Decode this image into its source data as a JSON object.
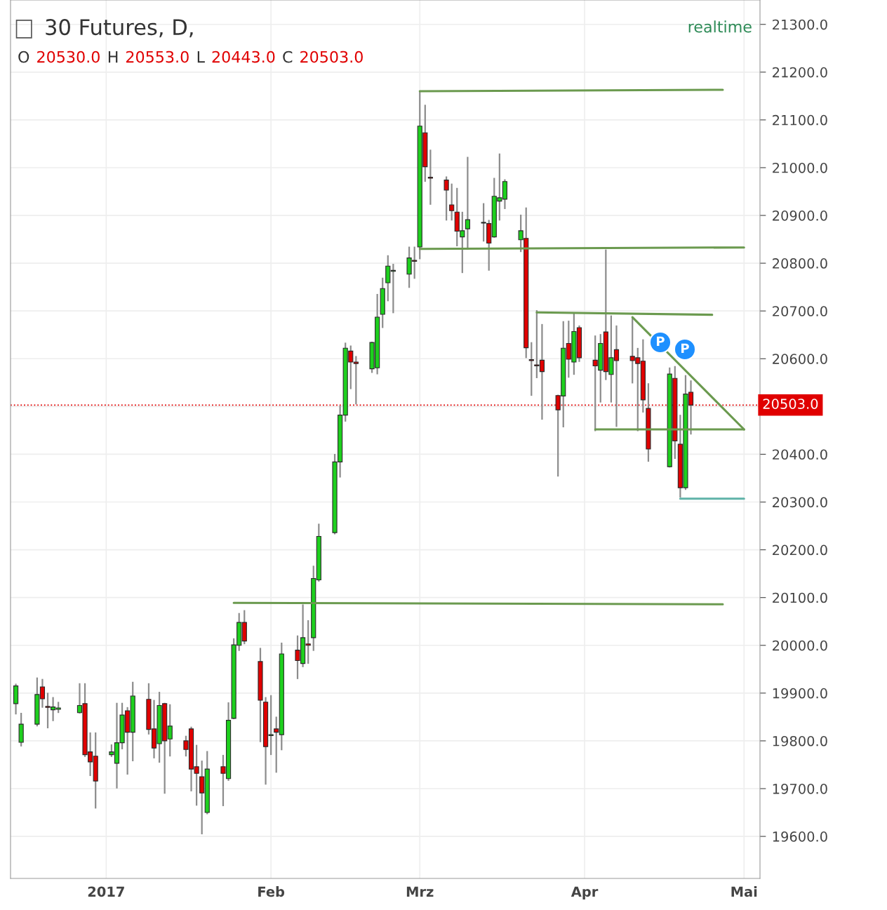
{
  "chart_data": {
    "type": "candlestick",
    "title": "30 Futures, D,",
    "annotations": [
      "O 20530.0 H 20553.0 L 20443.0 C 20503.0",
      "realtime",
      "P",
      "P"
    ],
    "colors": [
      "#1ed01e",
      "#1ed01e",
      "#1ed01e",
      "#e00000",
      "#e00000",
      "#1ed01e",
      "#1ed01e",
      "#1ed01e",
      "#e00000",
      "#e00000",
      "#e00000",
      "#1ed01e",
      "#1ed01e",
      "#1ed01e",
      "#e00000",
      "#1ed01e",
      "#e00000",
      "#e00000",
      "#1ed01e",
      "#e00000",
      "#1ed01e",
      "#e00000",
      "#e00000",
      "#e00000",
      "#e00000",
      "#1ed01e",
      "#e00000",
      "#1ed01e",
      "#1ed01e",
      "#1ed01e",
      "#e00000",
      "#e00000",
      "#e00000",
      "#1ed01e",
      "#e00000",
      "#1ed01e",
      "#e00000",
      "#1ed01e",
      "#e00000",
      "#1ed01e",
      "#1ed01e",
      "#1ed01e",
      "#1ed01e",
      "#1ed01e",
      "#e00000",
      "#e00000",
      "#1ed01e",
      "#1ed01e",
      "#1ed01e",
      "#1ed01e",
      "#1ed01e",
      "#1ed01e",
      "#e00000",
      "#1ed01e",
      "#e00000",
      "#e00000",
      "#e00000",
      "#e00000",
      "#e00000",
      "#1ed01e",
      "#1ed01e",
      "#1ed01e",
      "#e00000",
      "#1ed01e",
      "#1ed01e",
      "#1ed01e",
      "#1ed01e",
      "#e00000",
      "#e00000",
      "#e00000",
      "#e00000",
      "#e00000",
      "#1ed01e",
      "#e00000",
      "#1ed01e",
      "#e00000",
      "#e00000",
      "#1ed01e",
      "#e00000",
      "#1ed01e",
      "#e00000",
      "#e00000",
      "#e00000",
      "#e00000",
      "#e00000",
      "#1ed01e",
      "#e00000",
      "#e00000",
      "#1ed01e",
      "#e00000"
    ],
    "x": [
      "2016-12-15",
      "2016-12-16",
      "2016-12-19",
      "2016-12-20",
      "2016-12-21",
      "2016-12-22",
      "2016-12-23",
      "2016-12-27",
      "2016-12-28",
      "2016-12-29",
      "2016-12-30",
      "2017-01-02",
      "2017-01-03",
      "2017-01-04",
      "2017-01-05",
      "2017-01-06",
      "2017-01-09",
      "2017-01-10",
      "2017-01-11",
      "2017-01-12",
      "2017-01-13",
      "2017-01-16",
      "2017-01-17",
      "2017-01-18",
      "2017-01-19",
      "2017-01-20",
      "2017-01-23",
      "2017-01-24",
      "2017-01-25",
      "2017-01-26",
      "2017-01-27",
      "2017-01-30",
      "2017-01-31",
      "2017-02-01",
      "2017-02-02",
      "2017-02-03",
      "2017-02-06",
      "2017-02-07",
      "2017-02-08",
      "2017-02-09",
      "2017-02-10",
      "2017-02-13",
      "2017-02-14",
      "2017-02-15",
      "2017-02-16",
      "2017-02-17",
      "2017-02-20",
      "2017-02-21",
      "2017-02-22",
      "2017-02-23",
      "2017-02-24",
      "2017-02-27",
      "2017-02-28",
      "2017-03-01",
      "2017-03-02",
      "2017-03-03",
      "2017-03-06",
      "2017-03-07",
      "2017-03-08",
      "2017-03-09",
      "2017-03-10",
      "2017-03-13",
      "2017-03-14",
      "2017-03-15",
      "2017-03-16",
      "2017-03-17",
      "2017-03-20",
      "2017-03-21",
      "2017-03-22",
      "2017-03-23",
      "2017-03-24",
      "2017-03-27",
      "2017-03-28",
      "2017-03-29",
      "2017-03-30",
      "2017-03-31",
      "2017-04-03",
      "2017-04-04",
      "2017-04-05",
      "2017-04-06",
      "2017-04-07",
      "2017-04-10",
      "2017-04-11",
      "2017-04-12",
      "2017-04-13",
      "2017-04-17",
      "2017-04-18",
      "2017-04-19",
      "2017-04-20",
      "2017-04-21"
    ],
    "ohlc": [
      [
        19878,
        19918,
        19857,
        19915
      ],
      [
        19797,
        19857,
        19790,
        19835
      ],
      [
        19835,
        19931,
        19832,
        19897
      ],
      [
        19913,
        19928,
        19871,
        19888
      ],
      [
        19872,
        19899,
        19828,
        19870
      ],
      [
        19865,
        19890,
        19843,
        19871
      ],
      [
        19866,
        19880,
        19860,
        19869
      ],
      [
        19859,
        19919,
        19859,
        19874
      ],
      [
        19878,
        19919,
        19768,
        19771
      ],
      [
        19777,
        19816,
        19728,
        19756
      ],
      [
        19768,
        19816,
        19660,
        19716
      ],
      [
        19771,
        19791,
        19768,
        19777
      ],
      [
        19753,
        19878,
        19702,
        19796
      ],
      [
        19796,
        19878,
        19784,
        19854
      ],
      [
        19863,
        19869,
        19731,
        19818
      ],
      [
        19818,
        19922,
        19759,
        19894
      ],
      [
        19887,
        19919,
        19815,
        19824
      ],
      [
        19825,
        19884,
        19765,
        19785
      ],
      [
        19794,
        19901,
        19756,
        19874
      ],
      [
        19878,
        19878,
        19691,
        19800
      ],
      [
        19804,
        19875,
        19769,
        19831
      ],
      [
        19800,
        19809,
        19769,
        19782
      ],
      [
        19825,
        19828,
        19696,
        19741
      ],
      [
        19746,
        19790,
        19666,
        19732
      ],
      [
        19725,
        19757,
        19606,
        19691
      ],
      [
        19650,
        19777,
        19648,
        19741
      ],
      [
        19746,
        19769,
        19665,
        19732
      ],
      [
        19721,
        19879,
        19718,
        19843
      ],
      [
        19847,
        20013,
        19847,
        20001
      ],
      [
        20000,
        20066,
        19990,
        20048
      ],
      [
        20048,
        20072,
        20004,
        20009
      ],
      [
        19966,
        19993,
        19799,
        19885
      ],
      [
        19881,
        19890,
        19710,
        19788
      ],
      [
        19811,
        19894,
        19772,
        19813
      ],
      [
        19825,
        19849,
        19735,
        19818
      ],
      [
        19813,
        20004,
        19782,
        19982
      ],
      [
        19990,
        20019,
        19931,
        19968
      ],
      [
        19962,
        20084,
        19956,
        20016
      ],
      [
        20003,
        20051,
        19963,
        20000
      ],
      [
        20016,
        20165,
        19990,
        20140
      ],
      [
        20137,
        20253,
        20135,
        20228
      ],
      [
        20236,
        20399,
        20234,
        20384
      ],
      [
        20384,
        20500,
        20353,
        20482
      ],
      [
        20482,
        20632,
        20470,
        20622
      ],
      [
        20616,
        20626,
        20538,
        20593
      ],
      [
        20593,
        20604,
        20506,
        20590
      ],
      [
        20579,
        20634,
        20572,
        20634
      ],
      [
        20581,
        20734,
        20569,
        20687
      ],
      [
        20693,
        20768,
        20666,
        20747
      ],
      [
        20759,
        20815,
        20722,
        20794
      ],
      [
        20783,
        20797,
        20697,
        20785
      ],
      [
        20777,
        20833,
        20750,
        20811
      ],
      [
        20806,
        20833,
        20769,
        20804
      ],
      [
        20834,
        21160,
        20810,
        21087
      ],
      [
        21073,
        21130,
        20972,
        21002
      ],
      [
        20980,
        21036,
        20924,
        20978
      ],
      [
        20974,
        20980,
        20891,
        20953
      ],
      [
        20922,
        20965,
        20891,
        20910
      ],
      [
        20907,
        20956,
        20837,
        20867
      ],
      [
        20855,
        20906,
        20781,
        20868
      ],
      [
        20872,
        21021,
        20830,
        20891
      ],
      [
        20884,
        20924,
        20847,
        20885
      ],
      [
        20883,
        20889,
        20786,
        20842
      ],
      [
        20855,
        20977,
        20855,
        20940
      ],
      [
        20930,
        21028,
        20891,
        20937
      ],
      [
        20934,
        20974,
        20915,
        20971
      ],
      [
        20849,
        20900,
        20825,
        20868
      ],
      [
        20852,
        20915,
        20603,
        20623
      ],
      [
        20598,
        20633,
        20524,
        20596
      ],
      [
        20587,
        20700,
        20561,
        20585
      ],
      [
        20597,
        20671,
        20474,
        20573
      ],
      [
        20523,
        20523,
        20355,
        20493
      ],
      [
        20522,
        20677,
        20458,
        20622
      ],
      [
        20632,
        20678,
        20562,
        20599
      ],
      [
        20593,
        20693,
        20568,
        20657
      ],
      [
        20665,
        20668,
        20595,
        20602
      ],
      [
        20597,
        20647,
        20450,
        20585
      ],
      [
        20576,
        20650,
        20510,
        20632
      ],
      [
        20656,
        20827,
        20557,
        20573
      ],
      [
        20567,
        20689,
        20510,
        20602
      ],
      [
        20619,
        20668,
        20459,
        20596
      ],
      [
        20605,
        20687,
        20550,
        20596
      ],
      [
        20602,
        20621,
        20450,
        20590
      ],
      [
        20595,
        20639,
        20489,
        20514
      ],
      [
        20496,
        20547,
        20386,
        20411
      ],
      [
        20374,
        20580,
        20374,
        20568
      ],
      [
        20559,
        20583,
        20392,
        20428
      ],
      [
        20421,
        20481,
        20311,
        20330
      ],
      [
        20330,
        20564,
        20327,
        20526
      ],
      [
        20530,
        20553,
        20443,
        20503
      ]
    ],
    "series": [
      {
        "type": "line",
        "color": "#6b9a4f",
        "x": [
          "2017-03-01",
          "2017-04-27"
        ],
        "values": [
          21160,
          21163
        ]
      },
      {
        "type": "line",
        "color": "#6b9a4f",
        "x": [
          "2017-03-01",
          "2017-05-01"
        ],
        "values": [
          20830,
          20833
        ]
      },
      {
        "type": "line",
        "color": "#6b9a4f",
        "x": [
          "2017-03-23",
          "2017-04-25"
        ],
        "values": [
          20697,
          20692
        ]
      },
      {
        "type": "line",
        "color": "#6b9a4f",
        "x": [
          "2017-04-10",
          "2017-05-01"
        ],
        "values": [
          20687,
          20452
        ]
      },
      {
        "type": "line",
        "color": "#6b9a4f",
        "x": [
          "2017-04-03",
          "2017-05-01"
        ],
        "values": [
          20452,
          20452
        ]
      },
      {
        "type": "line",
        "color": "#5fb3a8",
        "x": [
          "2017-04-19",
          "2017-05-01"
        ],
        "values": [
          20307,
          20307
        ]
      },
      {
        "type": "line",
        "color": "#6b9a4f",
        "x": [
          "2017-01-25",
          "2017-04-27"
        ],
        "values": [
          20089,
          20086
        ]
      }
    ],
    "ref_lines": [
      {
        "axis": "y",
        "value": 20503,
        "label": "20503.0",
        "color": "#e00000",
        "line_style": "dotted"
      }
    ],
    "xlim": [
      "2016-12-14",
      "2017-05-04"
    ],
    "xticks": [
      {
        "value": "2017-01-01",
        "label": "2017"
      },
      {
        "value": "2017-02-01",
        "label": "Feb"
      },
      {
        "value": "2017-03-01",
        "label": "Mrz"
      },
      {
        "value": "2017-04-01",
        "label": "Apr"
      },
      {
        "value": "2017-05-01",
        "label": "Mai"
      }
    ],
    "ylim": [
      19512,
      21351
    ],
    "yticks": [
      {
        "value": 19600,
        "label": "19600.0"
      },
      {
        "value": 19700,
        "label": "19700.0"
      },
      {
        "value": 19800,
        "label": "19800.0"
      },
      {
        "value": 19900,
        "label": "19900.0"
      },
      {
        "value": 20000,
        "label": "20000.0"
      },
      {
        "value": 20100,
        "label": "20100.0"
      },
      {
        "value": 20200,
        "label": "20200.0"
      },
      {
        "value": 20300,
        "label": "20300.0"
      },
      {
        "value": 20400,
        "label": "20400.0"
      },
      {
        "value": 20500,
        "label": null
      },
      {
        "value": 20600,
        "label": "20600.0"
      },
      {
        "value": 20700,
        "label": "20700.0"
      },
      {
        "value": 20800,
        "label": "20800.0"
      },
      {
        "value": 20900,
        "label": "20900.0"
      },
      {
        "value": 21000,
        "label": "21000.0"
      },
      {
        "value": 21100,
        "label": "21100.0"
      },
      {
        "value": 21200,
        "label": "21200.0"
      },
      {
        "value": 21300,
        "label": "21300.0"
      }
    ],
    "grid": true
  }
}
